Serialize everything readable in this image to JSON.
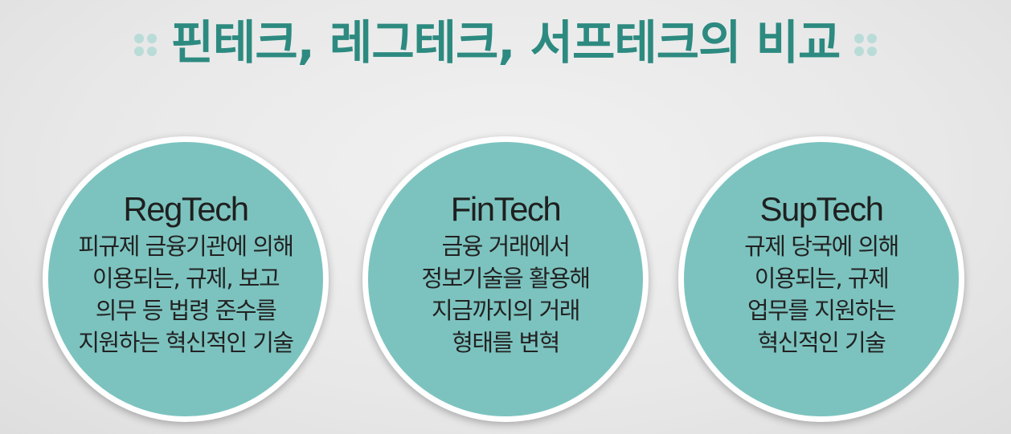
{
  "title": "핀테크, 레그테크, 서프테크의 비교",
  "colors": {
    "title": "#2d8a80",
    "circle_fill": "#7cc3bf",
    "circle_border": "#ffffff",
    "dots": "#b9dcd8"
  },
  "circles": [
    {
      "heading": "RegTech",
      "lines": [
        "피규제 금융기관에 의해",
        "이용되는, 규제, 보고",
        "의무 등 법령 준수를",
        "지원하는 혁신적인 기술"
      ]
    },
    {
      "heading": "FinTech",
      "lines": [
        "금융 거래에서",
        "정보기술을 활용해",
        "지금까지의 거래",
        "형태를 변혁"
      ]
    },
    {
      "heading": "SupTech",
      "lines": [
        "규제 당국에 의해",
        "이용되는, 규제",
        "업무를 지원하는",
        "혁신적인 기술"
      ]
    }
  ]
}
